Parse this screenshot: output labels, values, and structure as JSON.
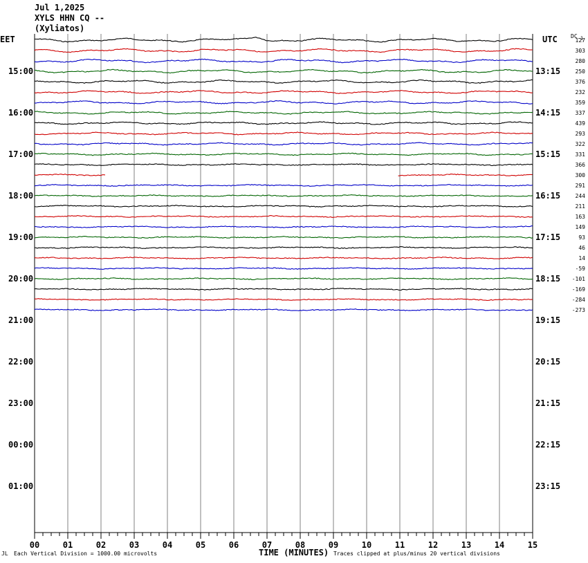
{
  "header": {
    "date": "Jul 1,2025",
    "station": "XYLS HHN CQ --",
    "location": "(Xyliatos)"
  },
  "left_zone": "EET",
  "right_zone": "UTC",
  "dc_header": "DC",
  "dc_header_sub": "-1",
  "footer": {
    "mark": "JL",
    "scale_note": "Each Vertical Division = 1000.00 microvolts",
    "clip_note": "Traces clipped at plus/minus 20 vertical divisions"
  },
  "chart_data": {
    "type": "line",
    "title": "",
    "xlabel": "TIME (MINUTES)",
    "xlim": [
      0,
      15
    ],
    "x_ticks": [
      "00",
      "01",
      "02",
      "03",
      "04",
      "05",
      "06",
      "07",
      "08",
      "09",
      "10",
      "11",
      "12",
      "13",
      "14",
      "15"
    ],
    "left_hour_labels": [
      "15:00",
      "16:00",
      "17:00",
      "18:00",
      "19:00",
      "20:00",
      "21:00",
      "22:00",
      "23:00",
      "00:00",
      "01:00"
    ],
    "right_hour_labels": [
      "13:15",
      "14:15",
      "15:15",
      "16:15",
      "17:15",
      "18:15",
      "19:15",
      "20:15",
      "21:15",
      "22:15",
      "23:15"
    ],
    "trace_colors": [
      "#000000",
      "#d00000",
      "#0000c8",
      "#006400"
    ],
    "series": [
      {
        "dc": "127",
        "coverage": [
          0,
          15
        ]
      },
      {
        "dc": "303",
        "coverage": [
          0,
          15
        ]
      },
      {
        "dc": "280",
        "coverage": [
          0,
          15
        ]
      },
      {
        "dc": "250",
        "coverage": [
          0,
          15
        ]
      },
      {
        "dc": "376",
        "coverage": [
          0,
          15
        ]
      },
      {
        "dc": "232",
        "coverage": [
          0,
          15
        ]
      },
      {
        "dc": "359",
        "coverage": [
          0,
          15
        ]
      },
      {
        "dc": "337",
        "coverage": [
          0,
          15
        ]
      },
      {
        "dc": "439",
        "coverage": [
          0,
          15
        ]
      },
      {
        "dc": "293",
        "coverage": [
          0,
          15
        ]
      },
      {
        "dc": "322",
        "coverage": [
          0,
          15
        ]
      },
      {
        "dc": "331",
        "coverage": [
          0,
          15
        ]
      },
      {
        "dc": "366",
        "coverage": [
          0,
          15
        ]
      },
      {
        "dc": "300",
        "coverage": [
          [
            0,
            2.15
          ],
          [
            10.95,
            15
          ]
        ]
      },
      {
        "dc": "291",
        "coverage": [
          0,
          15
        ]
      },
      {
        "dc": "244",
        "coverage": [
          0,
          15
        ]
      },
      {
        "dc": "211",
        "coverage": [
          0,
          15
        ]
      },
      {
        "dc": "163",
        "coverage": [
          0,
          15
        ]
      },
      {
        "dc": "149",
        "coverage": [
          0,
          15
        ]
      },
      {
        "dc": "93",
        "coverage": [
          0,
          15
        ]
      },
      {
        "dc": "46",
        "coverage": [
          0,
          15
        ]
      },
      {
        "dc": "14",
        "coverage": [
          0,
          15
        ]
      },
      {
        "dc": "-59",
        "coverage": [
          0,
          15
        ]
      },
      {
        "dc": "-101",
        "coverage": [
          0,
          15
        ]
      },
      {
        "dc": "-169",
        "coverage": [
          0,
          15
        ]
      },
      {
        "dc": "-284",
        "coverage": [
          0,
          15
        ]
      },
      {
        "dc": "-273",
        "coverage": [
          0,
          15
        ]
      }
    ]
  }
}
